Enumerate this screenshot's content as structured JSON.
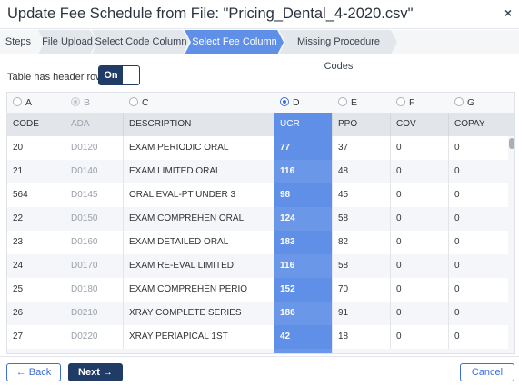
{
  "window": {
    "title": "Update Fee Schedule from File: \"Pricing_Dental_4-2020.csv\"",
    "close_glyph": "×"
  },
  "steps": {
    "label": "Steps",
    "items": [
      {
        "label": "File Upload",
        "state": "done"
      },
      {
        "label": "Select Code Column",
        "state": "done"
      },
      {
        "label": "Select Fee Column",
        "state": "active"
      },
      {
        "label": "Missing Procedure Codes",
        "state": "pending"
      }
    ]
  },
  "header_toggle": {
    "label": "Table has header row",
    "value": "On"
  },
  "columns": [
    {
      "letter": "A",
      "header": "CODE",
      "state": "normal"
    },
    {
      "letter": "B",
      "header": "ADA",
      "state": "disabled"
    },
    {
      "letter": "C",
      "header": "DESCRIPTION",
      "state": "normal"
    },
    {
      "letter": "D",
      "header": "UCR",
      "state": "selected"
    },
    {
      "letter": "E",
      "header": "PPO",
      "state": "normal"
    },
    {
      "letter": "F",
      "header": "COV",
      "state": "normal"
    },
    {
      "letter": "G",
      "header": "COPAY",
      "state": "normal"
    }
  ],
  "rows": [
    [
      "20",
      "D0120",
      "EXAM PERIODIC ORAL",
      "77",
      "37",
      "0",
      "0"
    ],
    [
      "21",
      "D0140",
      "EXAM LIMITED ORAL",
      "116",
      "48",
      "0",
      "0"
    ],
    [
      "564",
      "D0145",
      "ORAL EVAL-PT UNDER 3",
      "98",
      "45",
      "0",
      "0"
    ],
    [
      "22",
      "D0150",
      "EXAM COMPREHEN ORAL",
      "124",
      "58",
      "0",
      "0"
    ],
    [
      "23",
      "D0160",
      "EXAM DETAILED ORAL",
      "183",
      "82",
      "0",
      "0"
    ],
    [
      "24",
      "D0170",
      "EXAM RE-EVAL LIMITED",
      "116",
      "58",
      "0",
      "0"
    ],
    [
      "25",
      "D0180",
      "EXAM COMPREHEN PERIO",
      "152",
      "70",
      "0",
      "0"
    ],
    [
      "26",
      "D0210",
      "XRAY COMPLETE SERIES",
      "186",
      "91",
      "0",
      "0"
    ],
    [
      "27",
      "D0220",
      "XRAY PERIAPICAL 1ST",
      "42",
      "18",
      "0",
      "0"
    ]
  ],
  "footer": {
    "back_label": "Back",
    "next_label": "Next",
    "cancel_label": "Cancel"
  },
  "colors": {
    "accent": "#5f8fe6",
    "primary": "#1f3b66",
    "link": "#3c6fd8"
  }
}
